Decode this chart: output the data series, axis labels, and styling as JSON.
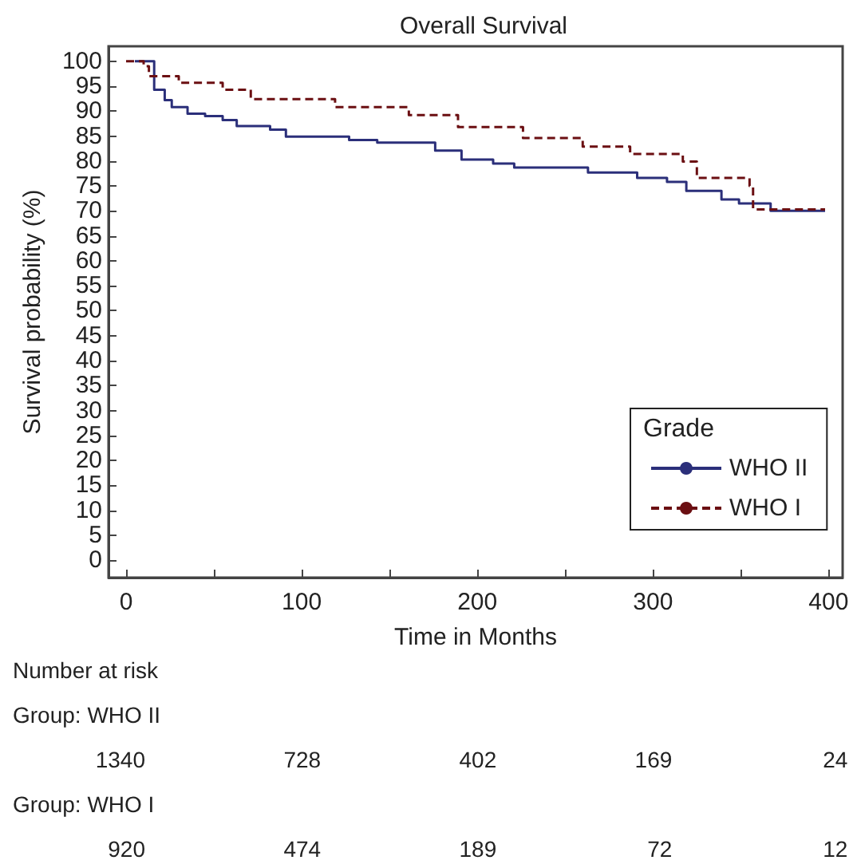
{
  "chart_data": {
    "type": "step",
    "title": "Overall Survival",
    "xlabel": "Time in Months",
    "ylabel": "Survival probability (%)",
    "legend_title": "Grade",
    "legend": "bottom right",
    "grid": false,
    "marker": "none",
    "xlim": [
      -10,
      408
    ],
    "xticks": [
      0,
      {
        "value": 50,
        "label": null
      },
      100,
      {
        "value": 150,
        "label": null
      },
      200,
      {
        "value": 250,
        "label": null
      },
      300,
      {
        "value": 350,
        "label": null
      },
      400
    ],
    "ylim": [
      -3.5,
      103
    ],
    "yticks": [
      0,
      5,
      10,
      15,
      20,
      25,
      30,
      35,
      40,
      45,
      50,
      55,
      60,
      65,
      70,
      75,
      80,
      85,
      90,
      95,
      100
    ],
    "series": [
      {
        "name": "WHO II",
        "color": "#2b2f7a",
        "line_style": "solid",
        "x": [
          5,
          16,
          22,
          26,
          35,
          45,
          55,
          63,
          82,
          91,
          127,
          143,
          176,
          191,
          209,
          221,
          263,
          291,
          308,
          319,
          339,
          349,
          367,
          398
        ],
        "values": [
          100,
          94.3,
          92.2,
          90.8,
          89.5,
          89,
          88.2,
          87,
          86.3,
          84.9,
          84.2,
          83.7,
          82.1,
          80.3,
          79.5,
          78.7,
          77.7,
          76.6,
          75.8,
          74,
          72.3,
          71.5,
          70,
          70
        ]
      },
      {
        "name": "WHO I",
        "color": "#6b0f12",
        "line_style": "dashed",
        "x": [
          0,
          10,
          13,
          30,
          55,
          71,
          119,
          161,
          189,
          226,
          260,
          287,
          317,
          325,
          355,
          357,
          398
        ],
        "values": [
          100,
          99,
          97,
          95.7,
          94.3,
          92.4,
          90.8,
          89.2,
          86.8,
          84.6,
          82.9,
          81.4,
          79.9,
          76.6,
          75,
          70.3,
          70.3
        ]
      }
    ],
    "annotations": [
      "Number at risk",
      "Group: WHO II",
      "1340",
      "728",
      "402",
      "169",
      "24",
      "Group: WHO I",
      "920",
      "474",
      "189",
      "72",
      "12"
    ]
  }
}
